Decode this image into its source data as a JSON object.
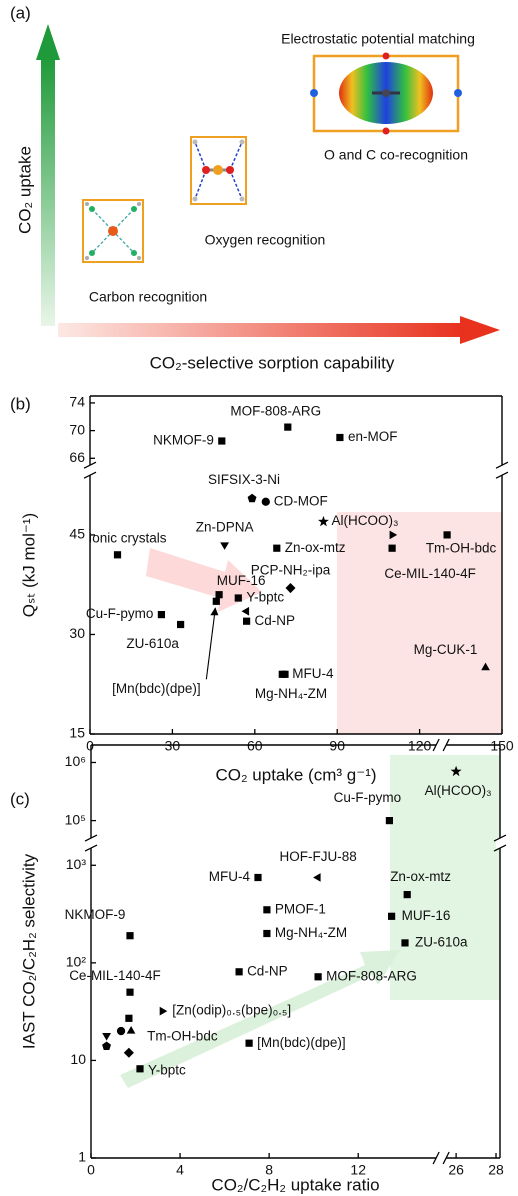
{
  "panel_a": {
    "panel_label": "(a)",
    "vertical_axis": "CO₂ uptake",
    "horizontal_axis": "CO₂-selective sorption capability",
    "electrostatic": "Electrostatic potential matching",
    "co_recognition": "O and C co-recognition",
    "oxygen": "Oxygen recognition",
    "carbon": "Carbon recognition"
  },
  "chart_data": [
    {
      "type": "scatter",
      "panel_label": "(b)",
      "x_label": "CO₂ uptake (cm³ g⁻¹)",
      "y_label": "Qₛₜ (kJ mol⁻¹)",
      "color": "#000000",
      "xlim": [
        0,
        150
      ],
      "xticks": [
        0,
        30,
        60,
        90,
        120,
        150
      ],
      "ylim": [
        15,
        75
      ],
      "ybreak": [
        54,
        65
      ],
      "yticks": [
        15,
        30,
        45,
        66,
        70,
        74
      ],
      "labels": [
        "NKMOF-9",
        "MOF-808-ARG",
        "en-MOF",
        "SIFSIX-3-Ni",
        "CD-MOF",
        "Al(HCOO)₃",
        "Zn-DPNA",
        "Zn-ox-mtz",
        "Tm-OH-bdc",
        null,
        "Ce-MIL-140-4F",
        "Ionic crystals",
        "PCP-NH₂-ipa",
        "MUF-16",
        "[Mn(bdc)(dpe)]",
        "Y-bptc",
        null,
        "Cd-NP",
        "Cu-F-pymo",
        "ZU-610a",
        "MFU-4",
        "Mg-NH₄-ZM",
        "Mg-CUK-1"
      ],
      "markers": [
        "square",
        "square",
        "square",
        "pentagon",
        "circle",
        "star",
        "triangle-down",
        "square",
        "square",
        "triangle-right",
        "square",
        "square",
        "diamond",
        "square",
        "square",
        "square",
        "triangle-left",
        "square",
        "square",
        "square",
        "square",
        "square",
        "triangle-up"
      ],
      "x": [
        48,
        72,
        91,
        59,
        64,
        85,
        49,
        68,
        130,
        110,
        110,
        10,
        73,
        47,
        46,
        54,
        57,
        57,
        26,
        33,
        70,
        71,
        144
      ],
      "y": [
        68.5,
        70.5,
        69,
        50.5,
        50,
        47,
        43.5,
        43,
        45,
        45,
        43,
        42,
        37,
        36,
        35,
        35.5,
        33.5,
        32,
        33,
        31.5,
        24,
        24,
        25
      ]
    },
    {
      "type": "scatter",
      "panel_label": "(c)",
      "x_label": "CO₂/C₂H₂ uptake ratio",
      "y_label": "IAST CO₂/C₂H₂ selectivity",
      "color": "#000000",
      "log_y": true,
      "xlim": [
        0,
        28.2
      ],
      "xbreak": [
        15.5,
        25.5
      ],
      "xticks": [
        0,
        4,
        8,
        12,
        26,
        28
      ],
      "ylim": [
        1,
        2000000
      ],
      "ybreak": [
        1500,
        50000
      ],
      "yticks": [
        1,
        10,
        {
          "value": 100,
          "label": "10²"
        },
        {
          "value": 1000,
          "label": "10³"
        },
        {
          "value": 100000,
          "label": "10⁵"
        },
        {
          "value": 1000000,
          "label": "10⁶"
        }
      ],
      "labels": [
        "Al(HCOO)₃",
        "Cu-F-pymo",
        "MFU-4",
        "HOF-FJU-88",
        "Zn-ox-mtz",
        "MUF-16",
        "ZU-610a",
        "PMOF-1",
        "Mg-NH₄-ZM",
        "NKMOF-9",
        "Cd-NP",
        "MOF-808-ARG",
        "Ce-MIL-140-4F",
        "[Zn(odip)₀.₅(bpe)₀.₅]",
        null,
        "Tm-OH-bdc",
        "[Mn(bdc)(dpe)]",
        null,
        null,
        null,
        null,
        "Y-bptc"
      ],
      "markers": [
        "star",
        "square",
        "square",
        "triangle-left",
        "square",
        "square",
        "square",
        "square",
        "square",
        "square",
        "square",
        "square",
        "square",
        "triangle-right",
        "square",
        "triangle-up",
        "square",
        "circle",
        "triangle-down",
        "pentagon",
        "diamond",
        "square"
      ],
      "x": [
        26,
        13.4,
        7.5,
        10.2,
        14.2,
        13.5,
        14.1,
        7.9,
        7.9,
        1.75,
        6.65,
        10.2,
        1.75,
        3.2,
        1.7,
        1.8,
        7.1,
        1.35,
        0.7,
        0.7,
        1.7,
        2.2
      ],
      "y": [
        700000,
        100000,
        750,
        750,
        500,
        300,
        160,
        350,
        200,
        190,
        81,
        72,
        50,
        32,
        27,
        20,
        15,
        20,
        18,
        14,
        12,
        8.2
      ]
    }
  ]
}
